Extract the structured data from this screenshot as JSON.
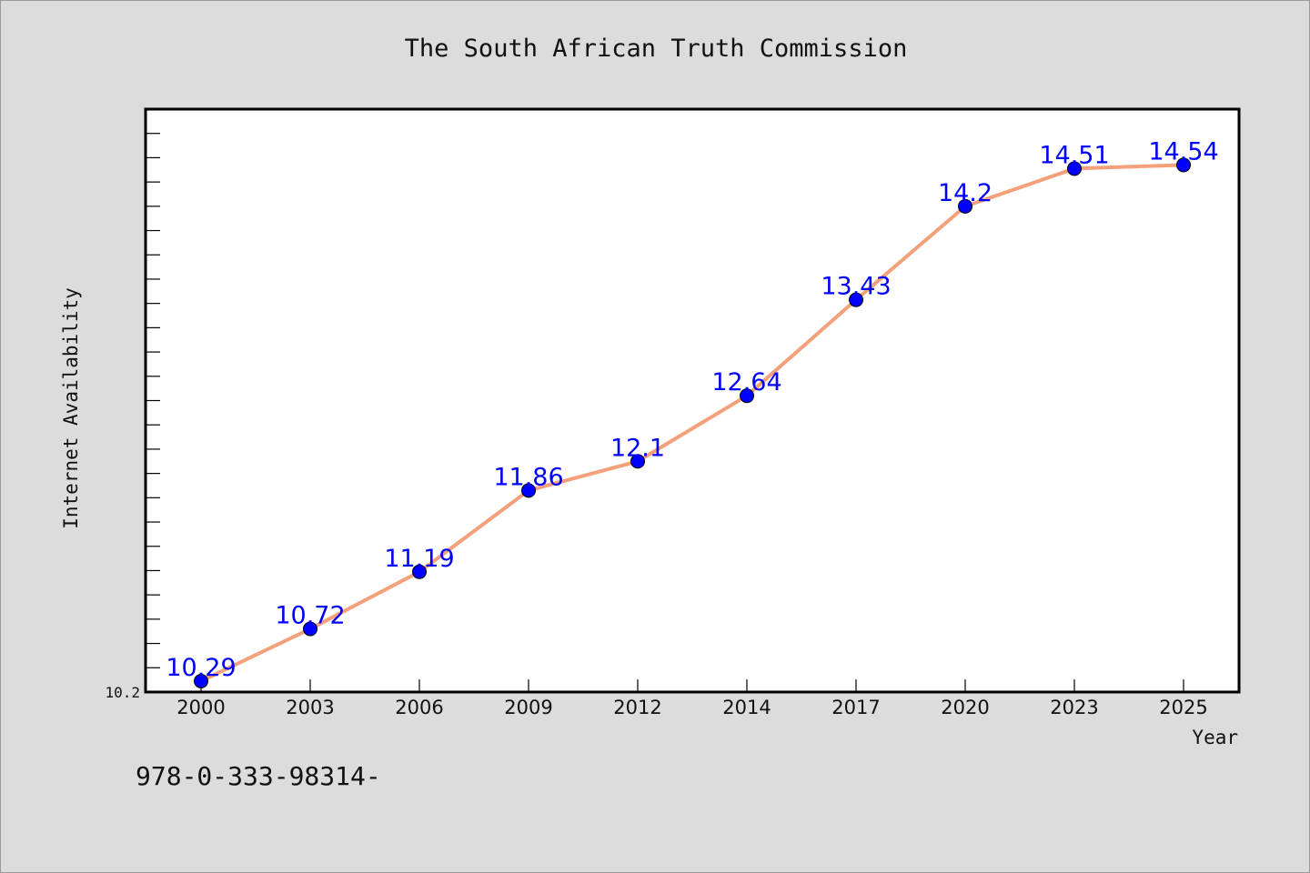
{
  "footer_code": "978-0-333-98314-",
  "chart_data": {
    "type": "line",
    "title": "The South African Truth Commission",
    "xlabel": "Year",
    "ylabel": "Internet Availability",
    "categories": [
      "2000",
      "2003",
      "2006",
      "2009",
      "2012",
      "2014",
      "2017",
      "2020",
      "2023",
      "2025"
    ],
    "series": [
      {
        "values": [
          10.29,
          10.72,
          11.19,
          11.86,
          12.1,
          12.64,
          13.43,
          14.2,
          14.51,
          14.54
        ],
        "line_color": "#f4a07a",
        "marker_color": "#0000ff"
      }
    ],
    "data_labels": [
      "10.29",
      "10.72",
      "11.19",
      "11.86",
      "12.1",
      "12.64",
      "13.43",
      "14.2",
      "14.51",
      "14.54"
    ],
    "y_tick_labels": [
      "10.2"
    ],
    "ylim": [
      10.2,
      15.0
    ],
    "grid": false,
    "legend": false,
    "plot_background": "#ffffff",
    "page_background": "#dcdcdc",
    "label_color": "#0000ff"
  }
}
